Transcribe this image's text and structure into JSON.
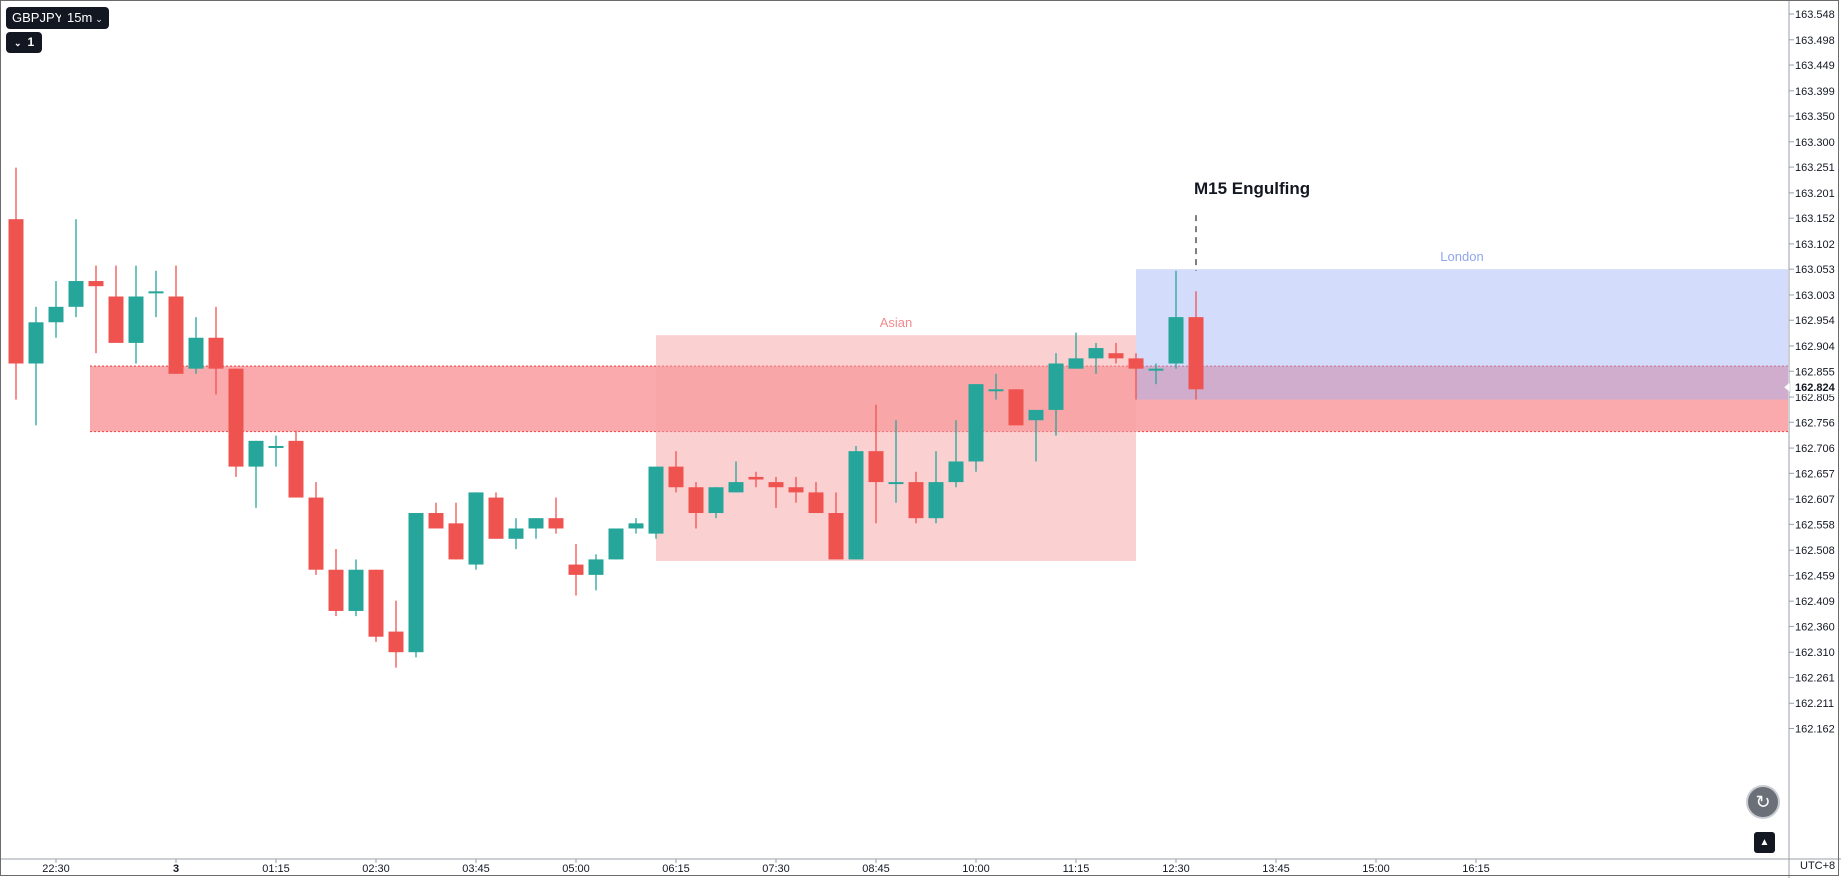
{
  "header": {
    "symbol": "GBPJPY",
    "interval": "15m",
    "study_count": "1"
  },
  "timezone": "UTC+8",
  "colors": {
    "up": "#26a69a",
    "down": "#ef5350",
    "axis_text": "#131722",
    "sell_zone": "#f77c80",
    "asian_box": "#f7a1a4",
    "london_box": "#9db2f4",
    "price_marker": "#ffffff"
  },
  "chart_data": {
    "type": "candlestick",
    "symbol": "GBPJPY",
    "interval": "15m",
    "ylim": [
      162.15,
      163.56
    ],
    "y_ticks": [
      "163.548",
      "163.498",
      "163.449",
      "163.399",
      "163.350",
      "163.300",
      "163.251",
      "163.201",
      "163.152",
      "163.102",
      "163.053",
      "163.003",
      "162.954",
      "162.904",
      "162.855",
      "162.805",
      "162.756",
      "162.706",
      "162.657",
      "162.607",
      "162.558",
      "162.508",
      "162.459",
      "162.409",
      "162.360",
      "162.310",
      "162.261",
      "162.211",
      "162.162"
    ],
    "x_ticks": [
      "22:30",
      "3",
      "01:15",
      "02:30",
      "03:45",
      "05:00",
      "06:15",
      "07:30",
      "08:45",
      "10:00",
      "11:15",
      "12:30",
      "13:45",
      "15:00",
      "16:15"
    ],
    "x_tick_index": [
      2.5,
      8.5,
      13.5,
      18.5,
      23.5,
      28.5,
      33.5,
      38.5,
      43.5,
      48.5,
      53.5,
      58.5,
      63.5,
      68.5,
      73.5
    ],
    "last_price": "162.824",
    "last_price_value": 162.824,
    "candles": [
      {
        "o": 163.15,
        "h": 163.25,
        "l": 162.8,
        "c": 162.87
      },
      {
        "o": 162.87,
        "h": 162.98,
        "l": 162.75,
        "c": 162.95
      },
      {
        "o": 162.95,
        "h": 163.03,
        "l": 162.92,
        "c": 162.98
      },
      {
        "o": 162.98,
        "h": 163.15,
        "l": 162.96,
        "c": 163.03
      },
      {
        "o": 163.03,
        "h": 163.06,
        "l": 162.89,
        "c": 163.02
      },
      {
        "o": 163.0,
        "h": 163.06,
        "l": 162.92,
        "c": 162.91
      },
      {
        "o": 162.91,
        "h": 163.06,
        "l": 162.87,
        "c": 163.0
      },
      {
        "o": 163.01,
        "h": 163.05,
        "l": 162.96,
        "c": 163.01
      },
      {
        "o": 163.0,
        "h": 163.06,
        "l": 162.85,
        "c": 162.85
      },
      {
        "o": 162.86,
        "h": 162.96,
        "l": 162.85,
        "c": 162.92
      },
      {
        "o": 162.92,
        "h": 162.98,
        "l": 162.81,
        "c": 162.86
      },
      {
        "o": 162.86,
        "h": 162.86,
        "l": 162.65,
        "c": 162.67
      },
      {
        "o": 162.67,
        "h": 162.72,
        "l": 162.59,
        "c": 162.72
      },
      {
        "o": 162.71,
        "h": 162.73,
        "l": 162.67,
        "c": 162.71
      },
      {
        "o": 162.72,
        "h": 162.74,
        "l": 162.61,
        "c": 162.61
      },
      {
        "o": 162.61,
        "h": 162.64,
        "l": 162.46,
        "c": 162.47
      },
      {
        "o": 162.47,
        "h": 162.51,
        "l": 162.38,
        "c": 162.39
      },
      {
        "o": 162.39,
        "h": 162.49,
        "l": 162.38,
        "c": 162.47
      },
      {
        "o": 162.47,
        "h": 162.47,
        "l": 162.33,
        "c": 162.34
      },
      {
        "o": 162.35,
        "h": 162.41,
        "l": 162.28,
        "c": 162.31
      },
      {
        "o": 162.31,
        "h": 162.58,
        "l": 162.3,
        "c": 162.58
      },
      {
        "o": 162.58,
        "h": 162.6,
        "l": 162.55,
        "c": 162.55
      },
      {
        "o": 162.56,
        "h": 162.6,
        "l": 162.49,
        "c": 162.49
      },
      {
        "o": 162.48,
        "h": 162.62,
        "l": 162.47,
        "c": 162.62
      },
      {
        "o": 162.61,
        "h": 162.62,
        "l": 162.53,
        "c": 162.53
      },
      {
        "o": 162.53,
        "h": 162.57,
        "l": 162.51,
        "c": 162.55
      },
      {
        "o": 162.55,
        "h": 162.57,
        "l": 162.53,
        "c": 162.57
      },
      {
        "o": 162.57,
        "h": 162.61,
        "l": 162.54,
        "c": 162.55
      },
      {
        "o": 162.48,
        "h": 162.52,
        "l": 162.42,
        "c": 162.46
      },
      {
        "o": 162.46,
        "h": 162.5,
        "l": 162.43,
        "c": 162.49
      },
      {
        "o": 162.49,
        "h": 162.55,
        "l": 162.49,
        "c": 162.55
      },
      {
        "o": 162.55,
        "h": 162.57,
        "l": 162.54,
        "c": 162.56
      },
      {
        "o": 162.54,
        "h": 162.67,
        "l": 162.53,
        "c": 162.67
      },
      {
        "o": 162.67,
        "h": 162.7,
        "l": 162.62,
        "c": 162.63
      },
      {
        "o": 162.63,
        "h": 162.64,
        "l": 162.55,
        "c": 162.58
      },
      {
        "o": 162.58,
        "h": 162.63,
        "l": 162.57,
        "c": 162.63
      },
      {
        "o": 162.62,
        "h": 162.68,
        "l": 162.62,
        "c": 162.64
      },
      {
        "o": 162.65,
        "h": 162.66,
        "l": 162.63,
        "c": 162.645
      },
      {
        "o": 162.64,
        "h": 162.65,
        "l": 162.59,
        "c": 162.63
      },
      {
        "o": 162.63,
        "h": 162.65,
        "l": 162.6,
        "c": 162.62
      },
      {
        "o": 162.62,
        "h": 162.64,
        "l": 162.58,
        "c": 162.58
      },
      {
        "o": 162.58,
        "h": 162.62,
        "l": 162.49,
        "c": 162.49
      },
      {
        "o": 162.49,
        "h": 162.71,
        "l": 162.49,
        "c": 162.7
      },
      {
        "o": 162.7,
        "h": 162.79,
        "l": 162.56,
        "c": 162.64
      },
      {
        "o": 162.64,
        "h": 162.76,
        "l": 162.6,
        "c": 162.64
      },
      {
        "o": 162.64,
        "h": 162.66,
        "l": 162.56,
        "c": 162.57
      },
      {
        "o": 162.57,
        "h": 162.7,
        "l": 162.56,
        "c": 162.64
      },
      {
        "o": 162.64,
        "h": 162.76,
        "l": 162.63,
        "c": 162.68
      },
      {
        "o": 162.68,
        "h": 162.83,
        "l": 162.66,
        "c": 162.83
      },
      {
        "o": 162.82,
        "h": 162.85,
        "l": 162.8,
        "c": 162.82
      },
      {
        "o": 162.82,
        "h": 162.82,
        "l": 162.75,
        "c": 162.75
      },
      {
        "o": 162.76,
        "h": 162.78,
        "l": 162.68,
        "c": 162.78
      },
      {
        "o": 162.78,
        "h": 162.89,
        "l": 162.73,
        "c": 162.87
      },
      {
        "o": 162.86,
        "h": 162.93,
        "l": 162.86,
        "c": 162.88
      },
      {
        "o": 162.88,
        "h": 162.91,
        "l": 162.85,
        "c": 162.9
      },
      {
        "o": 162.89,
        "h": 162.91,
        "l": 162.87,
        "c": 162.88
      },
      {
        "o": 162.88,
        "h": 162.89,
        "l": 162.8,
        "c": 162.86
      },
      {
        "o": 162.86,
        "h": 162.87,
        "l": 162.83,
        "c": 162.86
      },
      {
        "o": 162.87,
        "h": 163.05,
        "l": 162.86,
        "c": 162.96
      },
      {
        "o": 162.96,
        "h": 163.01,
        "l": 162.8,
        "c": 162.82
      }
    ],
    "zones": [
      {
        "type": "resistance-band",
        "top": 162.865,
        "bottom": 162.738,
        "from": 4.2,
        "to": 78
      },
      {
        "type": "session",
        "label": "Asian",
        "top": 162.925,
        "bottom": 162.487,
        "from": 32.5,
        "to": 56.5
      },
      {
        "type": "session",
        "label": "London",
        "top": 163.053,
        "bottom": 162.8,
        "from": 56.5,
        "to": 78
      }
    ],
    "annotation": {
      "text": "M15 Engulfing",
      "candle": 59,
      "price_top": 163.152,
      "price_bottom": 163.05
    }
  }
}
